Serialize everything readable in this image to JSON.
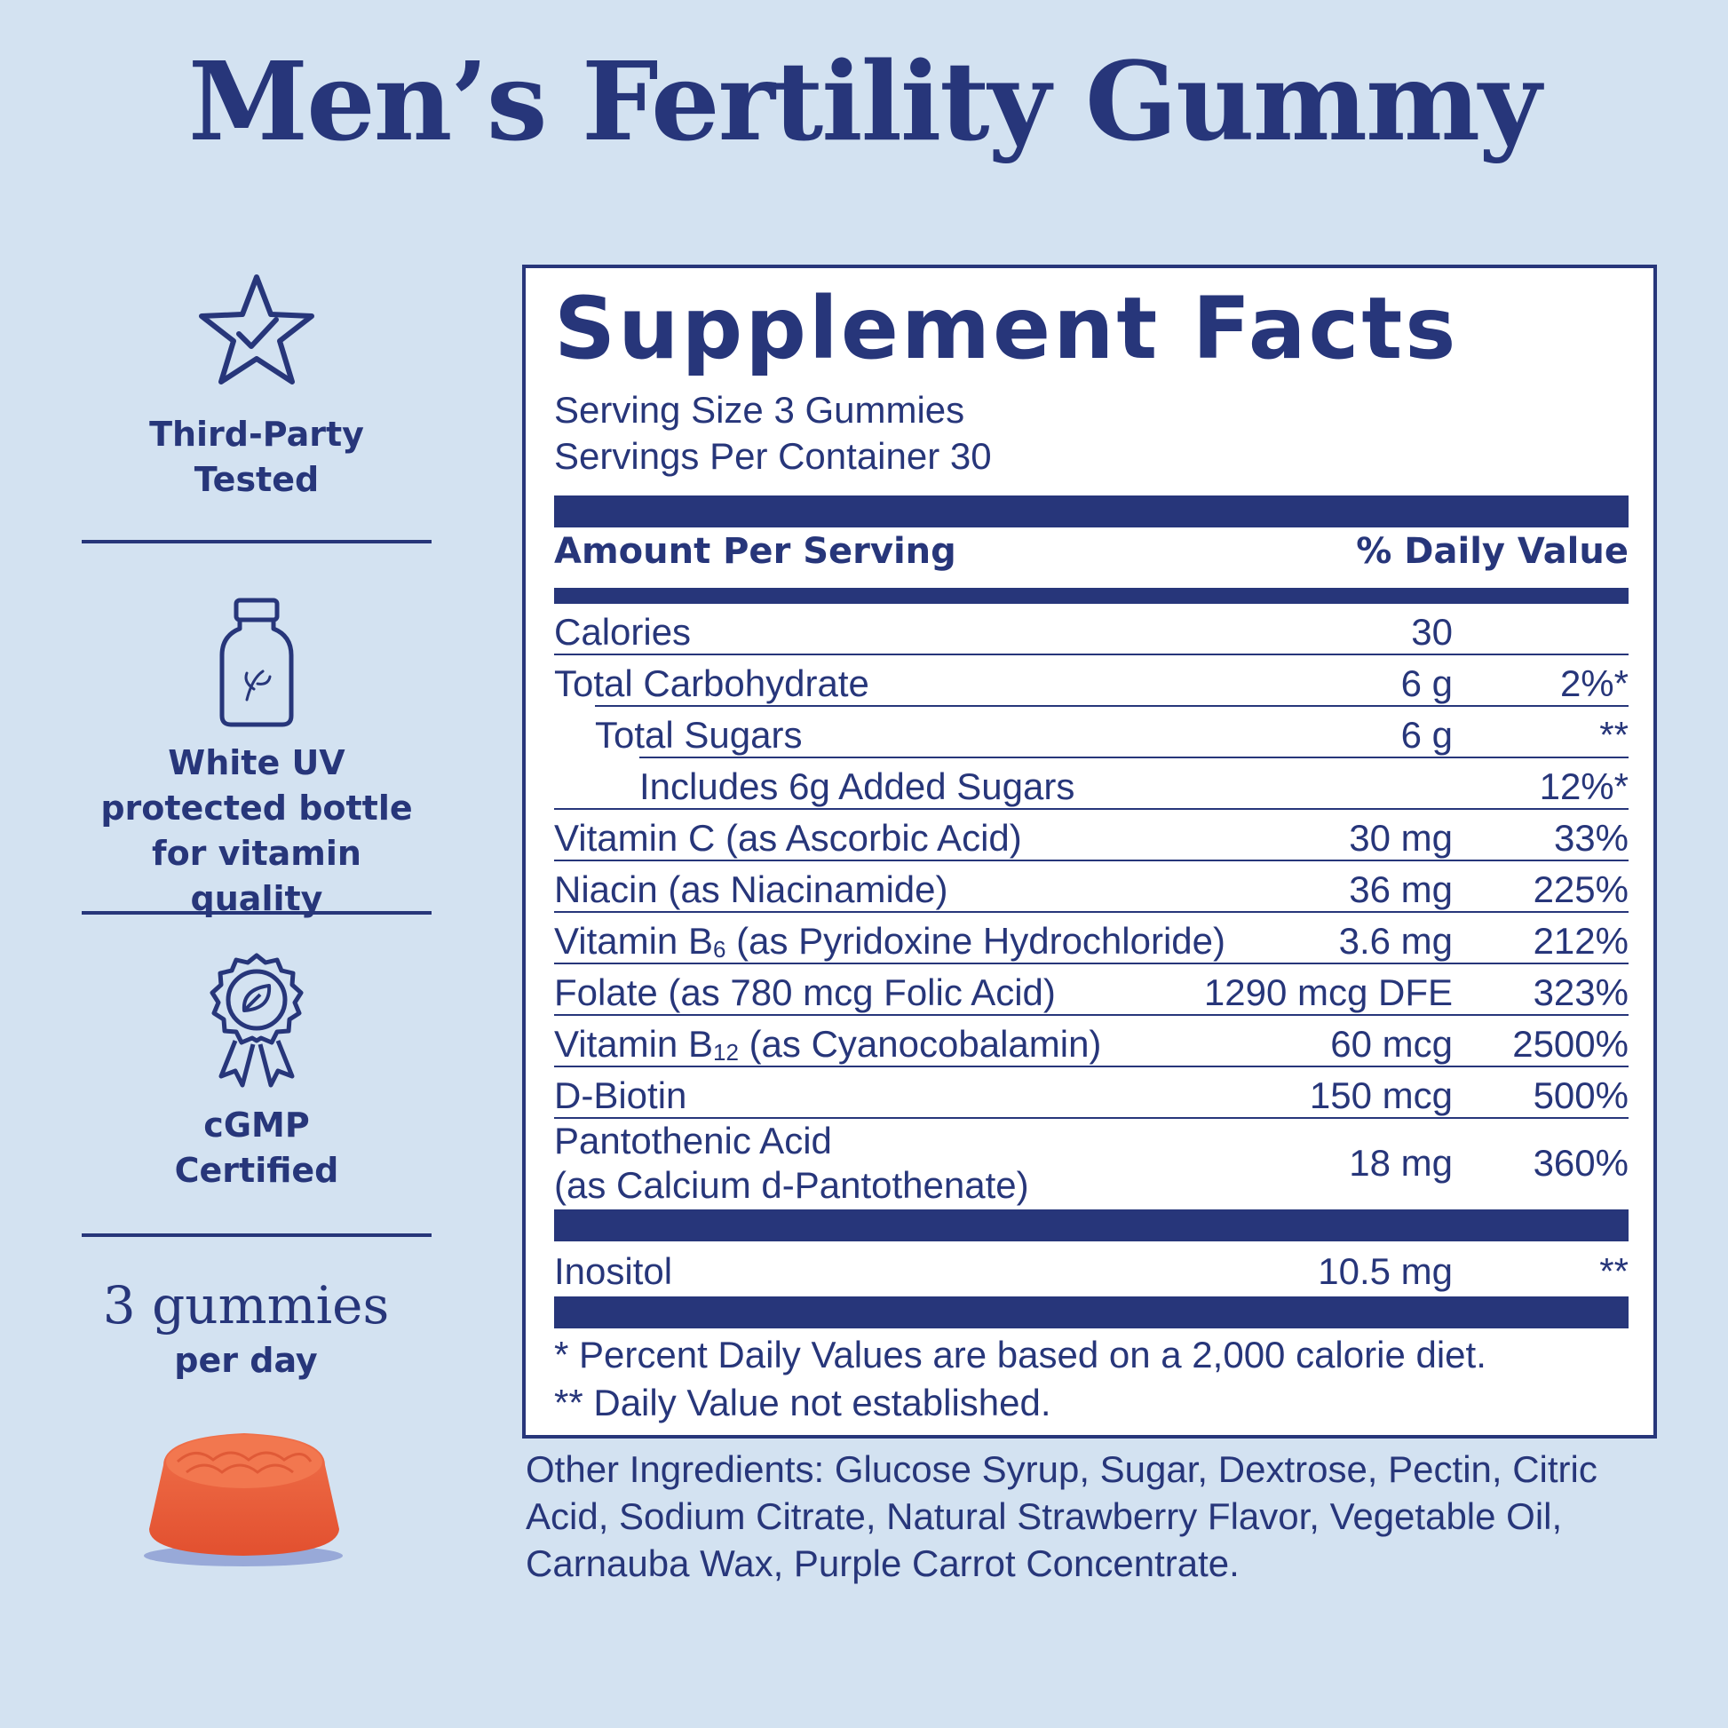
{
  "title": "Men’s Fertility Gummy",
  "badges": [
    {
      "icon": "star-check-icon",
      "label_lines": [
        "Third-Party",
        "Tested"
      ]
    },
    {
      "icon": "bottle-icon",
      "label_lines": [
        "White UV",
        "protected bottle",
        "for vitamin quality"
      ]
    },
    {
      "icon": "award-ribbon-icon",
      "label_lines": [
        "cGMP",
        "Certified"
      ]
    }
  ],
  "dose": {
    "big": "3 gummies",
    "small": "per day"
  },
  "facts": {
    "title": "Supplement Facts",
    "serving_size": "Serving Size 3 Gummies",
    "servings_per_container": "Servings Per Container 30",
    "header_left": "Amount Per Serving",
    "header_right": "% Daily Value",
    "rows": [
      {
        "name": "Calories",
        "amount": "30",
        "dv": ""
      },
      {
        "name": "Total Carbohydrate",
        "amount": "6 g",
        "dv": "2%*"
      },
      {
        "name": "Total Sugars",
        "amount": "6 g",
        "dv": "**"
      },
      {
        "name": "Includes 6g Added Sugars",
        "amount": "",
        "dv": "12%*"
      },
      {
        "name": "Vitamin C (as Ascorbic Acid)",
        "amount": "30 mg",
        "dv": "33%"
      },
      {
        "name": "Niacin (as Niacinamide)",
        "amount": "36 mg",
        "dv": "225%"
      },
      {
        "name_pre": "Vitamin B",
        "name_sub": "6",
        "name_post": " (as Pyridoxine Hydrochloride)",
        "amount": "3.6 mg",
        "dv": "212%"
      },
      {
        "name": "Folate (as 780 mcg Folic Acid)",
        "amount": "1290 mcg DFE",
        "dv": "323%"
      },
      {
        "name_pre": "Vitamin B",
        "name_sub": "12",
        "name_post": " (as Cyanocobalamin)",
        "amount": "60 mcg",
        "dv": "2500%"
      },
      {
        "name": "D-Biotin",
        "amount": "150 mcg",
        "dv": "500%"
      },
      {
        "name": "Pantothenic Acid",
        "name_line2": "(as Calcium d-Pantothenate)",
        "amount": "18 mg",
        "dv": "360%"
      },
      {
        "name": "Inositol",
        "amount": "10.5 mg",
        "dv": "**"
      }
    ],
    "footnotes": [
      "* Percent Daily Values are based on a 2,000 calorie diet.",
      "** Daily Value not established."
    ]
  },
  "other_ingredients": "Other Ingredients: Glucose Syrup, Sugar, Dextrose, Pectin, Citric Acid, Sodium Citrate, Natural Strawberry Flavor, Vegetable Oil, Carnauba Wax, Purple Carrot Concentrate.",
  "colors": {
    "background": "#d3e2f1",
    "ink": "#27367a",
    "gummy": "#ea5a37"
  }
}
